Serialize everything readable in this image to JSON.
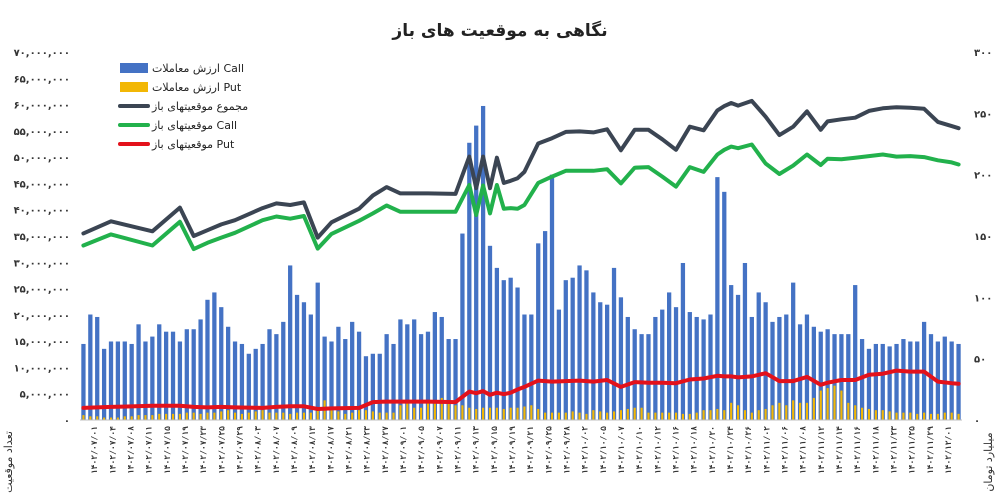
{
  "chart_data": {
    "type": "bar",
    "title": "نگاهی به موقعیت های باز",
    "ylabel_left": "تعداد موقعیت",
    "ylabel_right": "میلیارد تومان",
    "ylim_left": [
      0,
      70000000
    ],
    "ylim_right": [
      0,
      300
    ],
    "yticks_left": [
      "۰",
      "۵,۰۰۰,۰۰۰",
      "۱۰,۰۰۰,۰۰۰",
      "۱۵,۰۰۰,۰۰۰",
      "۲۰,۰۰۰,۰۰۰",
      "۲۵,۰۰۰,۰۰۰",
      "۳۰,۰۰۰,۰۰۰",
      "۳۵,۰۰۰,۰۰۰",
      "۴۰,۰۰۰,۰۰۰",
      "۴۵,۰۰۰,۰۰۰",
      "۵۰,۰۰۰,۰۰۰",
      "۵۵,۰۰۰,۰۰۰",
      "۶۰,۰۰۰,۰۰۰",
      "۶۵,۰۰۰,۰۰۰",
      "۷۰,۰۰۰,۰۰۰"
    ],
    "yticks_right": [
      "۰",
      "۵۰",
      "۱۰۰",
      "۱۵۰",
      "۲۰۰",
      "۲۵۰",
      "۳۰۰"
    ],
    "x_tick_labels": [
      "۱۴۰۲/۰۷/۰۱",
      "۱۴۰۲/۰۷/۰۴",
      "۱۴۰۲/۰۷/۰۸",
      "۱۴۰۲/۰۷/۱۱",
      "۱۴۰۲/۰۷/۱۵",
      "۱۴۰۲/۰۷/۱۹",
      "۱۴۰۲/۰۷/۲۳",
      "۱۴۰۲/۰۷/۲۵",
      "۱۴۰۲/۰۷/۲۹",
      "۱۴۰۲/۰۸/۰۳",
      "۱۴۰۲/۰۸/۰۷",
      "۱۴۰۲/۰۸/۰۹",
      "۱۴۰۲/۰۸/۱۳",
      "۱۴۰۲/۰۸/۱۷",
      "۱۴۰۲/۰۸/۲۱",
      "۱۴۰۲/۰۸/۲۳",
      "۱۴۰۲/۰۸/۲۷",
      "۱۴۰۲/۰۹/۰۱",
      "۱۴۰۲/۰۹/۰۵",
      "۱۴۰۲/۰۹/۰۷",
      "۱۴۰۲/۰۹/۱۱",
      "۱۴۰۲/۰۹/۱۳",
      "۱۴۰۲/۰۹/۱۵",
      "۱۴۰۲/۰۹/۱۹",
      "۱۴۰۲/۰۹/۲۱",
      "۱۴۰۲/۰۹/۲۵",
      "۱۴۰۲/۰۹/۲۸",
      "۱۴۰۲/۱۰/۰۲",
      "۱۴۰۲/۱۰/۰۵",
      "۱۴۰۲/۱۰/۰۷",
      "۱۴۰۲/۱۰/۱۰",
      "۱۴۰۲/۱۰/۱۲",
      "۱۴۰۲/۱۰/۱۶",
      "۱۴۰۲/۱۰/۱۸",
      "۱۴۰۲/۱۰/۲۰",
      "۱۴۰۲/۱۰/۲۴",
      "۱۴۰۲/۱۰/۲۶",
      "۱۴۰۲/۱۱/۰۲",
      "۱۴۰۲/۱۱/۰۶",
      "۱۴۰۲/۱۱/۰۸",
      "۱۴۰۲/۱۱/۱۲",
      "۱۴۰۲/۱۱/۱۴",
      "۱۴۰۲/۱۱/۱۶",
      "۱۴۰۲/۱۱/۱۸",
      "۱۴۰۲/۱۱/۲۳",
      "۱۴۰۲/۱۱/۲۵",
      "۱۴۰۲/۱۱/۲۹",
      "۱۴۰۲/۱۲/۰۱"
    ],
    "grid": false,
    "legend_placement": "top-left",
    "bar_series": [
      {
        "name": "ارزش معاملات Call",
        "axis": "right",
        "color": "#4472c4",
        "values": [
          62,
          86,
          84,
          58,
          64,
          64,
          64,
          62,
          78,
          64,
          68,
          78,
          72,
          72,
          64,
          74,
          74,
          82,
          98,
          104,
          92,
          76,
          64,
          62,
          54,
          58,
          62,
          74,
          70,
          80,
          126,
          102,
          96,
          86,
          112,
          68,
          64,
          76,
          66,
          80,
          72,
          52,
          54,
          54,
          70,
          62,
          82,
          78,
          82,
          70,
          72,
          88,
          84,
          66,
          66,
          152,
          226,
          240,
          256,
          142,
          124,
          114,
          116,
          108,
          86,
          86,
          144,
          154,
          200,
          90,
          114,
          116,
          126,
          122,
          104,
          96,
          94,
          124,
          100,
          84,
          74,
          70,
          70,
          84,
          90,
          104,
          92,
          128,
          88,
          84,
          82,
          86,
          198,
          186,
          110,
          102,
          128,
          84,
          104,
          96,
          80,
          84,
          86,
          112,
          78,
          86,
          76,
          72,
          74,
          70,
          70,
          70,
          110,
          66,
          58,
          62,
          62,
          60,
          62,
          66,
          64,
          64,
          80,
          70,
          64,
          68,
          64,
          62
        ]
      },
      {
        "name": "ارزش معاملات Put",
        "axis": "right",
        "color": "#f2b705",
        "values": [
          4,
          3,
          3,
          2,
          2,
          2,
          3,
          3,
          4,
          4,
          4,
          5,
          5,
          5,
          5,
          6,
          6,
          5,
          6,
          6,
          7,
          8,
          6,
          5,
          6,
          7,
          8,
          6,
          6,
          6,
          5,
          6,
          6,
          6,
          10,
          16,
          8,
          7,
          5,
          6,
          8,
          8,
          7,
          6,
          6,
          6,
          12,
          14,
          10,
          10,
          14,
          16,
          18,
          14,
          12,
          12,
          10,
          9,
          10,
          10,
          10,
          9,
          10,
          10,
          11,
          12,
          9,
          6,
          6,
          6,
          6,
          7,
          6,
          5,
          8,
          7,
          6,
          7,
          8,
          9,
          10,
          10,
          6,
          6,
          6,
          6,
          6,
          5,
          5,
          6,
          8,
          8,
          9,
          8,
          14,
          12,
          8,
          6,
          8,
          9,
          12,
          14,
          12,
          16,
          14,
          14,
          18,
          24,
          26,
          28,
          24,
          14,
          12,
          10,
          9,
          8,
          8,
          7,
          6,
          6,
          6,
          5,
          6,
          5,
          5,
          6,
          6,
          5
        ]
      }
    ],
    "line_series": [
      {
        "name": "مجموع موقعیتهای باز",
        "axis": "left",
        "color": "#3b4553",
        "x": [
          0,
          4,
          10,
          14,
          16,
          18,
          20,
          22,
          26,
          28,
          30,
          32,
          34,
          36,
          40,
          42,
          44,
          46,
          48,
          50,
          54,
          56,
          57,
          58,
          59,
          60,
          61,
          62,
          63,
          64,
          66,
          68,
          70,
          72,
          74,
          76,
          78,
          80,
          82,
          84,
          86,
          88,
          90,
          92,
          93,
          94,
          95,
          97,
          99,
          101,
          103,
          105,
          107,
          108,
          110,
          112,
          114,
          116,
          118,
          120,
          122,
          124,
          126,
          127
        ],
        "y": [
          35500000,
          37800000,
          35900000,
          40400000,
          35000000,
          36100000,
          37200000,
          38000000,
          40300000,
          41200000,
          40900000,
          41400000,
          34700000,
          37600000,
          40200000,
          42700000,
          44300000,
          43100000,
          43100000,
          43100000,
          43000000,
          50100000,
          44100000,
          50100000,
          44100000,
          49900000,
          45100000,
          45500000,
          46000000,
          47200000,
          52600000,
          53600000,
          54800000,
          54900000,
          54700000,
          55300000,
          51300000,
          55200000,
          55200000,
          53400000,
          51400000,
          55800000,
          55100000,
          58900000,
          59700000,
          60300000,
          59800000,
          60700000,
          57700000,
          54200000,
          55800000,
          58700000,
          55200000,
          56800000,
          57200000,
          57500000,
          58800000,
          59300000,
          59500000,
          59400000,
          59200000,
          56700000,
          55900000,
          55500000
        ]
      },
      {
        "name": "موقعیتهای باز Call",
        "axis": "left",
        "color": "#22b14c",
        "x": [
          0,
          4,
          10,
          14,
          16,
          18,
          20,
          22,
          26,
          28,
          30,
          32,
          34,
          36,
          40,
          42,
          44,
          46,
          48,
          50,
          54,
          56,
          57,
          58,
          59,
          60,
          61,
          62,
          63,
          64,
          66,
          68,
          70,
          72,
          74,
          76,
          78,
          80,
          82,
          84,
          86,
          88,
          90,
          92,
          93,
          94,
          95,
          97,
          99,
          101,
          103,
          105,
          107,
          108,
          110,
          112,
          114,
          116,
          118,
          120,
          122,
          124,
          126,
          127
        ],
        "y": [
          33200000,
          35300000,
          33200000,
          37700000,
          32500000,
          33700000,
          34700000,
          35600000,
          38000000,
          38700000,
          38300000,
          38800000,
          32600000,
          35400000,
          37900000,
          39300000,
          40800000,
          39600000,
          39600000,
          39600000,
          39600000,
          44700000,
          39000000,
          44600000,
          39300000,
          44700000,
          40200000,
          40300000,
          40200000,
          40900000,
          45100000,
          46300000,
          47400000,
          47400000,
          47400000,
          47700000,
          45000000,
          48000000,
          48100000,
          46300000,
          44400000,
          48100000,
          47200000,
          50500000,
          51400000,
          52000000,
          51700000,
          52400000,
          48800000,
          46800000,
          48400000,
          50500000,
          48500000,
          49700000,
          49600000,
          49900000,
          50200000,
          50500000,
          50100000,
          50200000,
          50000000,
          49400000,
          49000000,
          48600000
        ]
      },
      {
        "name": "موقعیتهای باز Put",
        "axis": "left",
        "color": "#e3111b",
        "x": [
          0,
          4,
          10,
          14,
          16,
          18,
          20,
          22,
          26,
          28,
          30,
          32,
          34,
          36,
          40,
          42,
          44,
          46,
          48,
          50,
          54,
          56,
          57,
          58,
          59,
          60,
          61,
          62,
          63,
          64,
          66,
          68,
          70,
          72,
          74,
          76,
          78,
          80,
          82,
          84,
          86,
          88,
          90,
          92,
          93,
          94,
          95,
          97,
          99,
          101,
          103,
          105,
          107,
          108,
          110,
          112,
          114,
          116,
          118,
          120,
          122,
          124,
          126,
          127
        ],
        "y": [
          2300000,
          2500000,
          2700000,
          2700000,
          2500000,
          2400000,
          2500000,
          2400000,
          2300000,
          2500000,
          2600000,
          2600000,
          2100000,
          2200000,
          2300000,
          3400000,
          3500000,
          3500000,
          3500000,
          3500000,
          3400000,
          5400000,
          5100000,
          5500000,
          4800000,
          5200000,
          4900000,
          5200000,
          5800000,
          6300000,
          7500000,
          7300000,
          7400000,
          7500000,
          7300000,
          7600000,
          6300000,
          7200000,
          7100000,
          7100000,
          7000000,
          7700000,
          7900000,
          8400000,
          8300000,
          8300000,
          8100000,
          8300000,
          8900000,
          7400000,
          7400000,
          8200000,
          6700000,
          7100000,
          7600000,
          7600000,
          8600000,
          8800000,
          9400000,
          9200000,
          9200000,
          7300000,
          7000000,
          6900000
        ]
      }
    ]
  }
}
